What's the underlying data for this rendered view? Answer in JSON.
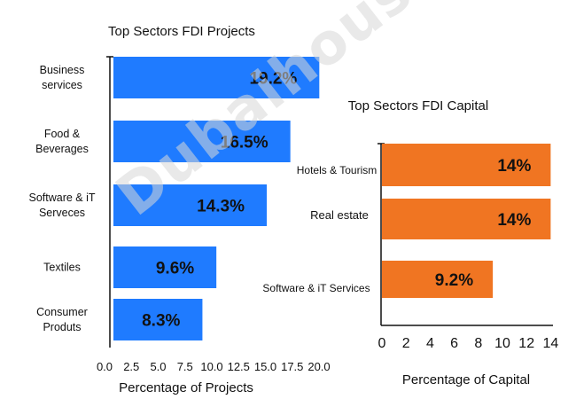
{
  "watermark": "Dubaihousing",
  "chart_data": [
    {
      "type": "bar",
      "orientation": "horizontal",
      "title": "Top Sectors FDI Projects",
      "xlabel": "Percentage of  Projects",
      "ylabel": "",
      "categories": [
        [
          "Business",
          "services"
        ],
        [
          "Food &",
          "Beverages"
        ],
        [
          "Software & iT",
          "Serveces"
        ],
        [
          "Textiles"
        ],
        [
          "Consumer",
          "Produts"
        ]
      ],
      "values": [
        19.2,
        16.5,
        14.3,
        9.6,
        8.3
      ],
      "data_labels": [
        "19.2%",
        "16.5%",
        "14.3%",
        "9.6%",
        "8.3%"
      ],
      "xlim": [
        0,
        20
      ],
      "xticks": [
        "0.0",
        "2.5",
        "5.0",
        "7.5",
        "10.0",
        "12.5",
        "15.0",
        "17.5",
        "20.0"
      ],
      "xtick_values": [
        0,
        2.5,
        5,
        7.5,
        10,
        12.5,
        15,
        17.5,
        20
      ],
      "color": "#1f7bff",
      "grid": false
    },
    {
      "type": "bar",
      "orientation": "horizontal",
      "title": "Top Sectors FDI Capital",
      "xlabel": "Percentage of  Capital",
      "ylabel": "",
      "categories": [
        [
          "Hotels & Tourism"
        ],
        [
          "Real estate"
        ],
        [
          "Software & iT Services"
        ]
      ],
      "values": [
        14,
        14,
        9.2
      ],
      "data_labels": [
        "14%",
        "14%",
        "9.2%"
      ],
      "xlim": [
        0,
        14.5
      ],
      "xticks": [
        "0",
        "2",
        "4",
        "6",
        "8",
        "10",
        "12",
        "14"
      ],
      "xtick_values": [
        0,
        2,
        4,
        6,
        8,
        10,
        12,
        14
      ],
      "color": "#f07522",
      "grid": false
    }
  ]
}
